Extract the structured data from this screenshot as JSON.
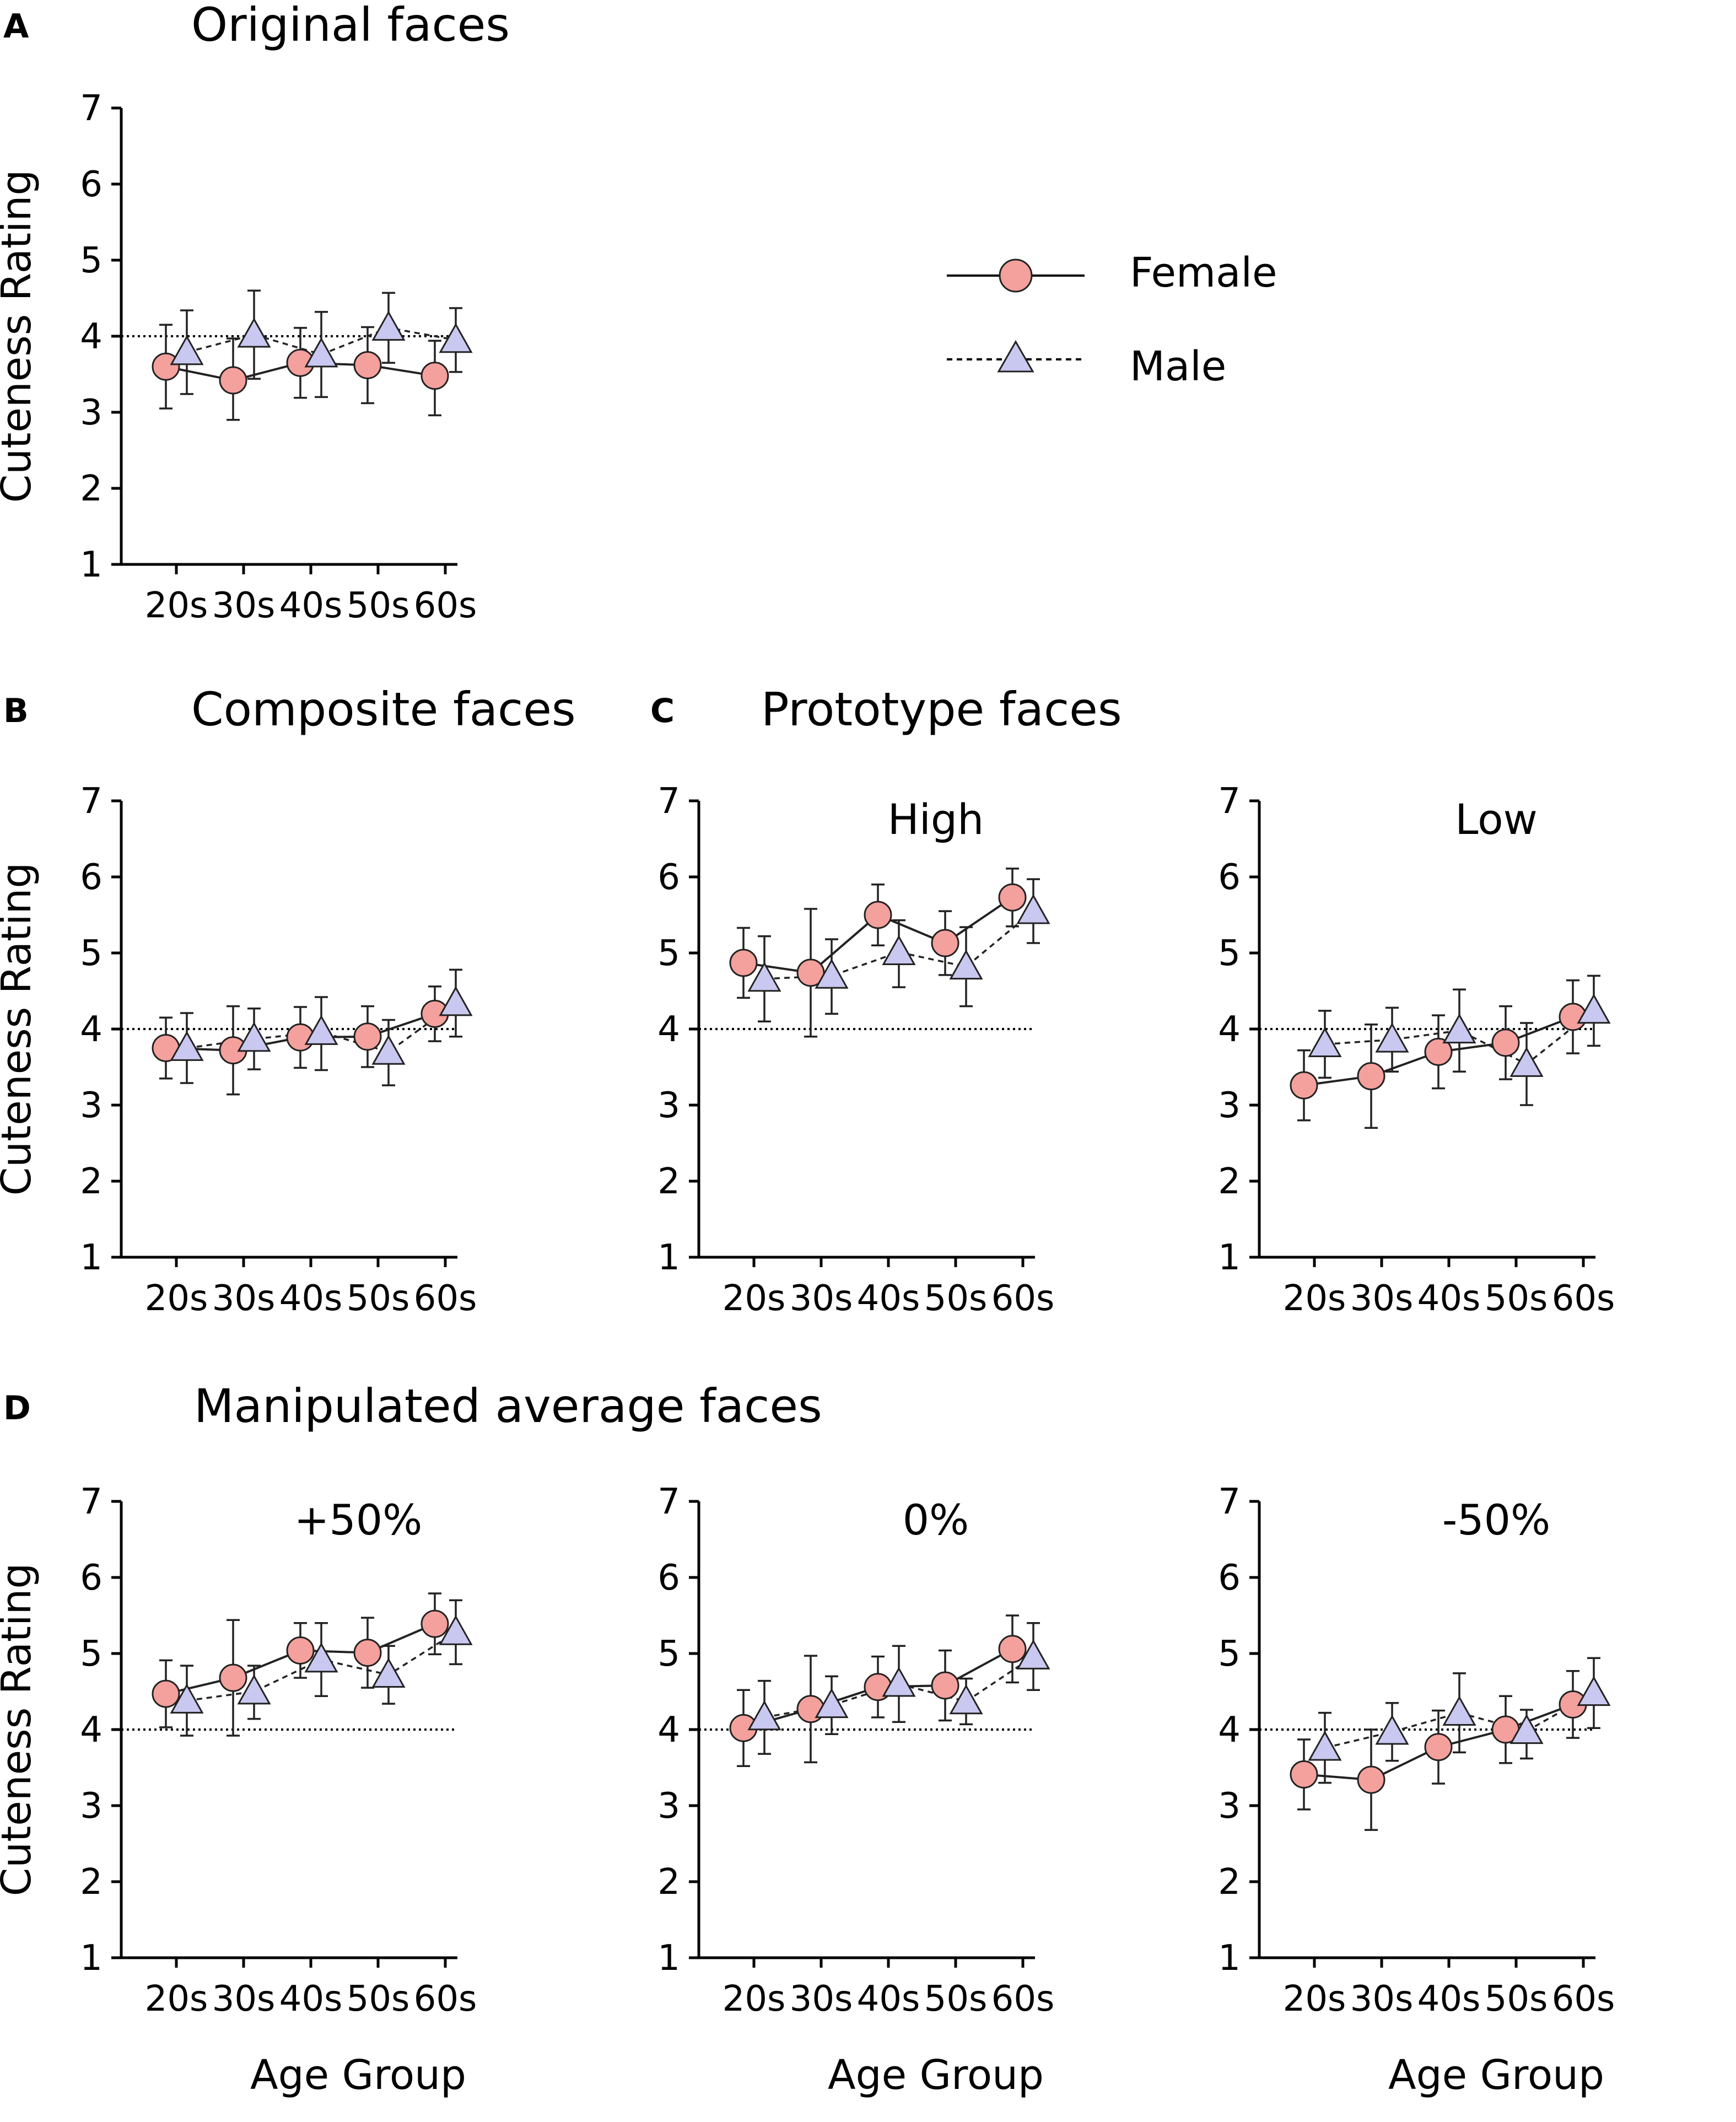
{
  "figure": {
    "sections": [
      {
        "id": "A",
        "letter": "A",
        "title": "Original faces"
      },
      {
        "id": "B",
        "letter": "B",
        "title": "Composite faces"
      },
      {
        "id": "C",
        "letter": "C",
        "title": "Prototype faces"
      },
      {
        "id": "D",
        "letter": "D",
        "title": "Manipulated average faces"
      }
    ],
    "legend": [
      {
        "label": "Female",
        "marker": "circle",
        "line": "solid"
      },
      {
        "label": "Male",
        "marker": "triangle",
        "line": "dotted"
      }
    ],
    "colors": {
      "female_fill": "#F4A09C",
      "male_fill": "#C8C8F0",
      "stroke": "#222222",
      "axis": "#000000",
      "reference_line": "#000000"
    }
  },
  "chart_data": [
    {
      "id": "A-original",
      "section": "A",
      "type": "line",
      "title": "",
      "xlabel": "",
      "ylabel": "Cuteness Rating",
      "categories": [
        "20s",
        "30s",
        "40s",
        "50s",
        "60s"
      ],
      "ylim": [
        1,
        7
      ],
      "yticks": [
        1,
        2,
        3,
        4,
        5,
        6,
        7
      ],
      "reference_line": 4,
      "series": [
        {
          "name": "Female",
          "values": [
            3.6,
            3.42,
            3.65,
            3.62,
            3.48
          ],
          "err_low": [
            0.55,
            0.52,
            0.46,
            0.5,
            0.52
          ],
          "err_high": [
            0.55,
            0.55,
            0.46,
            0.5,
            0.46
          ]
        },
        {
          "name": "Male",
          "values": [
            3.79,
            4.02,
            3.76,
            4.11,
            3.95
          ],
          "err_low": [
            0.55,
            0.58,
            0.56,
            0.46,
            0.42
          ],
          "err_high": [
            0.55,
            0.58,
            0.56,
            0.46,
            0.42
          ]
        }
      ]
    },
    {
      "id": "B-composite",
      "section": "B",
      "type": "line",
      "title": "",
      "xlabel": "",
      "ylabel": "Cuteness Rating",
      "categories": [
        "20s",
        "30s",
        "40s",
        "50s",
        "60s"
      ],
      "ylim": [
        1,
        7
      ],
      "yticks": [
        1,
        2,
        3,
        4,
        5,
        6,
        7
      ],
      "reference_line": 4,
      "series": [
        {
          "name": "Female",
          "values": [
            3.75,
            3.72,
            3.89,
            3.9,
            4.2
          ],
          "err_low": [
            0.4,
            0.58,
            0.4,
            0.4,
            0.36
          ],
          "err_high": [
            0.4,
            0.58,
            0.4,
            0.4,
            0.36
          ]
        },
        {
          "name": "Male",
          "values": [
            3.75,
            3.87,
            3.96,
            3.7,
            4.34
          ],
          "err_low": [
            0.46,
            0.4,
            0.5,
            0.44,
            0.44
          ],
          "err_high": [
            0.46,
            0.4,
            0.46,
            0.42,
            0.44
          ]
        }
      ]
    },
    {
      "id": "C-high",
      "section": "C",
      "type": "line",
      "title": "High",
      "xlabel": "",
      "ylabel": "",
      "categories": [
        "20s",
        "30s",
        "40s",
        "50s",
        "60s"
      ],
      "ylim": [
        1,
        7
      ],
      "yticks": [
        1,
        2,
        3,
        4,
        5,
        6,
        7
      ],
      "reference_line": 4,
      "series": [
        {
          "name": "Female",
          "values": [
            4.87,
            4.74,
            5.5,
            5.13,
            5.73
          ],
          "err_low": [
            0.46,
            0.84,
            0.4,
            0.42,
            0.38
          ],
          "err_high": [
            0.46,
            0.84,
            0.4,
            0.42,
            0.38
          ]
        },
        {
          "name": "Male",
          "values": [
            4.66,
            4.7,
            5.01,
            4.82,
            5.55
          ],
          "err_low": [
            0.56,
            0.5,
            0.46,
            0.52,
            0.42
          ],
          "err_high": [
            0.56,
            0.48,
            0.42,
            0.52,
            0.42
          ]
        }
      ]
    },
    {
      "id": "C-low",
      "section": "C",
      "type": "line",
      "title": "Low",
      "xlabel": "",
      "ylabel": "",
      "categories": [
        "20s",
        "30s",
        "40s",
        "50s",
        "60s"
      ],
      "ylim": [
        1,
        7
      ],
      "yticks": [
        1,
        2,
        3,
        4,
        5,
        6,
        7
      ],
      "reference_line": 4,
      "series": [
        {
          "name": "Female",
          "values": [
            3.26,
            3.38,
            3.7,
            3.82,
            4.16
          ],
          "err_low": [
            0.46,
            0.68,
            0.48,
            0.48,
            0.48
          ],
          "err_high": [
            0.46,
            0.68,
            0.48,
            0.48,
            0.48
          ]
        },
        {
          "name": "Male",
          "values": [
            3.8,
            3.86,
            3.98,
            3.54,
            4.24
          ],
          "err_low": [
            0.44,
            0.42,
            0.54,
            0.54,
            0.46
          ],
          "err_high": [
            0.44,
            0.42,
            0.54,
            0.54,
            0.46
          ]
        }
      ]
    },
    {
      "id": "D-plus50",
      "section": "D",
      "type": "line",
      "title": "+50%",
      "xlabel": "Age Group",
      "ylabel": "Cuteness Rating",
      "categories": [
        "20s",
        "30s",
        "40s",
        "50s",
        "60s"
      ],
      "ylim": [
        1,
        7
      ],
      "yticks": [
        1,
        2,
        3,
        4,
        5,
        6,
        7
      ],
      "reference_line": 4,
      "series": [
        {
          "name": "Female",
          "values": [
            4.47,
            4.68,
            5.04,
            5.01,
            5.39
          ],
          "err_low": [
            0.44,
            0.76,
            0.36,
            0.46,
            0.4
          ],
          "err_high": [
            0.44,
            0.76,
            0.36,
            0.46,
            0.4
          ]
        },
        {
          "name": "Male",
          "values": [
            4.38,
            4.5,
            4.92,
            4.72,
            5.28
          ],
          "err_low": [
            0.46,
            0.36,
            0.48,
            0.38,
            0.42
          ],
          "err_high": [
            0.46,
            0.34,
            0.48,
            0.38,
            0.42
          ]
        }
      ]
    },
    {
      "id": "D-zero",
      "section": "D",
      "type": "line",
      "title": "0%",
      "xlabel": "Age Group",
      "ylabel": "",
      "categories": [
        "20s",
        "30s",
        "40s",
        "50s",
        "60s"
      ],
      "ylim": [
        1,
        7
      ],
      "yticks": [
        1,
        2,
        3,
        4,
        5,
        6,
        7
      ],
      "reference_line": 4,
      "series": [
        {
          "name": "Female",
          "values": [
            4.02,
            4.27,
            4.56,
            4.58,
            5.06
          ],
          "err_low": [
            0.5,
            0.7,
            0.4,
            0.46,
            0.44
          ],
          "err_high": [
            0.5,
            0.7,
            0.4,
            0.46,
            0.44
          ]
        },
        {
          "name": "Male",
          "values": [
            4.16,
            4.32,
            4.6,
            4.37,
            4.96
          ],
          "err_low": [
            0.48,
            0.38,
            0.5,
            0.3,
            0.44
          ],
          "err_high": [
            0.48,
            0.38,
            0.5,
            0.3,
            0.44
          ]
        }
      ]
    },
    {
      "id": "D-minus50",
      "section": "D",
      "type": "line",
      "title": "-50%",
      "xlabel": "Age Group",
      "ylabel": "",
      "categories": [
        "20s",
        "30s",
        "40s",
        "50s",
        "60s"
      ],
      "ylim": [
        1,
        7
      ],
      "yticks": [
        1,
        2,
        3,
        4,
        5,
        6,
        7
      ],
      "reference_line": 4,
      "series": [
        {
          "name": "Female",
          "values": [
            3.41,
            3.34,
            3.77,
            4.0,
            4.33
          ],
          "err_low": [
            0.46,
            0.66,
            0.48,
            0.44,
            0.44
          ],
          "err_high": [
            0.46,
            0.66,
            0.48,
            0.44,
            0.44
          ]
        },
        {
          "name": "Male",
          "values": [
            3.76,
            3.97,
            4.22,
            3.98,
            4.48
          ],
          "err_low": [
            0.46,
            0.38,
            0.52,
            0.36,
            0.46
          ],
          "err_high": [
            0.46,
            0.38,
            0.52,
            0.28,
            0.46
          ]
        }
      ]
    }
  ]
}
